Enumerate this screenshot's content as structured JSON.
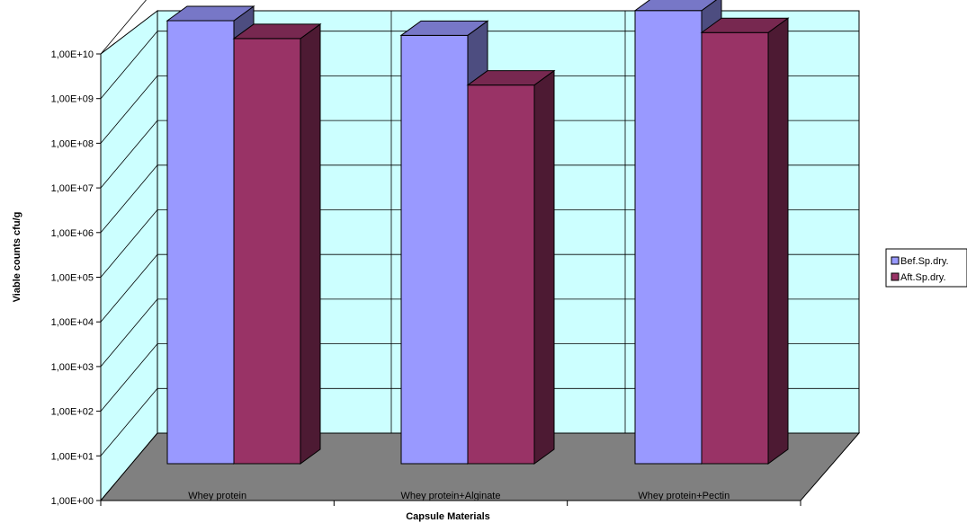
{
  "chart_data": {
    "type": "bar",
    "style": "3d-clustered-column",
    "yscale": "log",
    "xlabel": "Capsule  Materials",
    "ylabel": "Viable counts cfu/g",
    "categories": [
      "Whey protein",
      "Whey protein+Alginate",
      "Whey protein+Pectin"
    ],
    "yticks": [
      "1,00E+00",
      "1,00E+01",
      "1,00E+02",
      "1,00E+03",
      "1,00E+04",
      "1,00E+05",
      "1,00E+06",
      "1,00E+07",
      "1,00E+08",
      "1,00E+09",
      "1,00E+10"
    ],
    "ylim": [
      1,
      10000000000
    ],
    "grid": true,
    "legend_position": "right",
    "series": [
      {
        "name": "Bef.Sp.dry.",
        "values": [
          8300000000,
          3900000000,
          14000000000
        ],
        "color": "#9999ff"
      },
      {
        "name": "Aft.Sp.dry.",
        "values": [
          3300000000,
          300000000,
          4500000000
        ],
        "color": "#993366"
      }
    ],
    "colors": {
      "back_wall": "#ccffff",
      "floor": "#808080",
      "gridline": "#000000"
    }
  }
}
